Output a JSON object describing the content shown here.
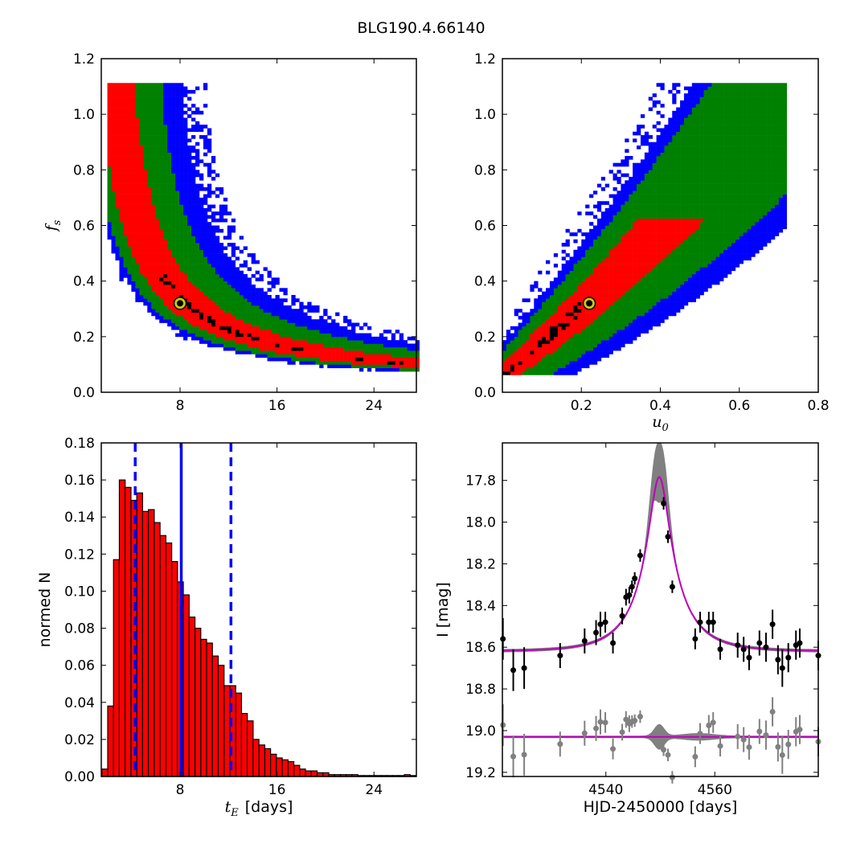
{
  "figure_title": "BLG190.4.66140",
  "colors": {
    "blue": "#0000ff",
    "green": "#008000",
    "red": "#ff0000",
    "black": "#000000",
    "gray": "#808080",
    "magenta": "#bf00bf",
    "marker": "#cccc00"
  },
  "chart_data": [
    {
      "type": "heatmap",
      "title": "BLG190.4.66140",
      "xlabel": "",
      "ylabel": "f_s",
      "ylabel_main": "f",
      "ylabel_sub": "s",
      "xlim": [
        1.5,
        27.5
      ],
      "ylim": [
        0.0,
        1.2
      ],
      "xticks": [
        8,
        16,
        24
      ],
      "xtick_labels": [
        "8",
        "16",
        "24"
      ],
      "yticks": [
        0.0,
        0.2,
        0.4,
        0.6,
        0.8,
        1.0,
        1.2
      ],
      "ytick_labels": [
        "0.0",
        "0.2",
        "0.4",
        "0.6",
        "0.8",
        "1.0",
        "1.2"
      ],
      "contour_levels": [
        "black",
        "red",
        "green",
        "blue"
      ],
      "relation": "f_s approximately 2.6 / t_E (band follows a hyperbola)",
      "best_fit": {
        "x": 8.0,
        "y": 0.32
      }
    },
    {
      "type": "heatmap",
      "xlabel": "u_0",
      "xlabel_main": "u",
      "xlabel_sub": "0",
      "ylabel": "",
      "xlim": [
        0.0,
        0.8
      ],
      "ylim": [
        0.0,
        1.2
      ],
      "xticks": [
        0.2,
        0.4,
        0.6,
        0.8
      ],
      "xtick_labels": [
        "0.2",
        "0.4",
        "0.6",
        "0.8"
      ],
      "yticks": [
        0.0,
        0.2,
        0.4,
        0.6,
        0.8,
        1.0,
        1.2
      ],
      "ytick_labels": [
        "0.0",
        "0.2",
        "0.4",
        "0.6",
        "0.8",
        "1.0",
        "1.2"
      ],
      "contour_levels": [
        "black",
        "red",
        "green",
        "blue"
      ],
      "relation": "f_s increases roughly linearly-to-quadratically with u_0",
      "best_fit": {
        "x": 0.22,
        "y": 0.32
      }
    },
    {
      "type": "bar",
      "xlabel": "t_E [days]",
      "xlabel_main": "t",
      "xlabel_sub": "E",
      "xlabel_unit": "[days]",
      "ylabel": "normed N",
      "xlim": [
        1.5,
        27.5
      ],
      "ylim": [
        0.0,
        0.18
      ],
      "xticks": [
        8,
        16,
        24
      ],
      "xtick_labels": [
        "8",
        "16",
        "24"
      ],
      "yticks": [
        0.0,
        0.02,
        0.04,
        0.06,
        0.08,
        0.1,
        0.12,
        0.14,
        0.16,
        0.18
      ],
      "ytick_labels": [
        "0.00",
        "0.02",
        "0.04",
        "0.06",
        "0.08",
        "0.10",
        "0.12",
        "0.14",
        "0.16",
        "0.18"
      ],
      "bin_start": 1.55,
      "bin_width": 0.48,
      "values": [
        0.004,
        0.038,
        0.117,
        0.16,
        0.156,
        0.149,
        0.153,
        0.143,
        0.144,
        0.137,
        0.13,
        0.126,
        0.116,
        0.105,
        0.098,
        0.086,
        0.08,
        0.074,
        0.072,
        0.065,
        0.06,
        0.049,
        0.049,
        0.045,
        0.034,
        0.03,
        0.02,
        0.017,
        0.015,
        0.012,
        0.01,
        0.009,
        0.008,
        0.006,
        0.004,
        0.003,
        0.003,
        0.002,
        0.002,
        0.001,
        0.001,
        0.001,
        0.001,
        0.001,
        0.0005,
        0.0005,
        0.0005,
        0.0005,
        0.0005,
        0.0005,
        0.0005,
        0.0005,
        0.001,
        0.0005
      ],
      "median": 8.1,
      "lower_bound": 4.3,
      "upper_bound": 12.2
    },
    {
      "type": "line",
      "xlabel": "HJD-2450000 [days]",
      "ylabel": "I [mag]",
      "xlim": [
        4521,
        4579
      ],
      "ylim": [
        19.22,
        17.62
      ],
      "y_inverted": true,
      "xticks": [
        4540,
        4560
      ],
      "xtick_labels": [
        "4540",
        "4560"
      ],
      "yticks": [
        17.8,
        18.0,
        18.2,
        18.4,
        18.6,
        18.8,
        19.0,
        19.2
      ],
      "ytick_labels": [
        "17.8",
        "18.0",
        "18.2",
        "18.4",
        "18.6",
        "18.8",
        "19.0",
        "19.2"
      ],
      "model": {
        "name": "",
        "baseline": 18.62,
        "peak_mag": 17.78,
        "peak_time": 4549.8,
        "t_E": 8.1,
        "u0": 0.22,
        "fs": 0.32
      },
      "band": {
        "peak_upper": 17.62,
        "peak_lower": 17.9
      },
      "residual_offset": 19.03,
      "photometry": [
        {
          "x": 4521.1,
          "y": 18.56,
          "err": 0.1
        },
        {
          "x": 4523.0,
          "y": 18.71,
          "err": 0.1
        },
        {
          "x": 4525.0,
          "y": 18.7,
          "err": 0.1
        },
        {
          "x": 4531.6,
          "y": 18.64,
          "err": 0.06
        },
        {
          "x": 4536.1,
          "y": 18.57,
          "err": 0.06
        },
        {
          "x": 4538.2,
          "y": 18.53,
          "err": 0.06
        },
        {
          "x": 4539.0,
          "y": 18.49,
          "err": 0.06
        },
        {
          "x": 4539.9,
          "y": 18.48,
          "err": 0.05
        },
        {
          "x": 4541.3,
          "y": 18.58,
          "err": 0.05
        },
        {
          "x": 4543.0,
          "y": 18.45,
          "err": 0.04
        },
        {
          "x": 4543.7,
          "y": 18.36,
          "err": 0.04
        },
        {
          "x": 4544.3,
          "y": 18.35,
          "err": 0.04
        },
        {
          "x": 4544.8,
          "y": 18.31,
          "err": 0.03
        },
        {
          "x": 4545.3,
          "y": 18.27,
          "err": 0.03
        },
        {
          "x": 4546.3,
          "y": 18.16,
          "err": 0.03
        },
        {
          "x": 4550.6,
          "y": 17.91,
          "err": 0.03
        },
        {
          "x": 4551.4,
          "y": 18.07,
          "err": 0.03
        },
        {
          "x": 4552.2,
          "y": 18.31,
          "err": 0.03
        },
        {
          "x": 4556.4,
          "y": 18.56,
          "err": 0.05
        },
        {
          "x": 4557.3,
          "y": 18.48,
          "err": 0.05
        },
        {
          "x": 4558.9,
          "y": 18.48,
          "err": 0.05
        },
        {
          "x": 4559.7,
          "y": 18.48,
          "err": 0.05
        },
        {
          "x": 4561.0,
          "y": 18.61,
          "err": 0.05
        },
        {
          "x": 4564.2,
          "y": 18.59,
          "err": 0.06
        },
        {
          "x": 4565.3,
          "y": 18.61,
          "err": 0.06
        },
        {
          "x": 4566.3,
          "y": 18.65,
          "err": 0.06
        },
        {
          "x": 4568.2,
          "y": 18.58,
          "err": 0.06
        },
        {
          "x": 4569.4,
          "y": 18.6,
          "err": 0.07
        },
        {
          "x": 4570.6,
          "y": 18.49,
          "err": 0.07
        },
        {
          "x": 4571.6,
          "y": 18.66,
          "err": 0.07
        },
        {
          "x": 4572.4,
          "y": 18.7,
          "err": 0.09
        },
        {
          "x": 4573.5,
          "y": 18.65,
          "err": 0.07
        },
        {
          "x": 4574.9,
          "y": 18.59,
          "err": 0.07
        },
        {
          "x": 4575.6,
          "y": 18.58,
          "err": 0.07
        },
        {
          "x": 4579.0,
          "y": 18.64,
          "err": 0.07
        }
      ]
    }
  ]
}
